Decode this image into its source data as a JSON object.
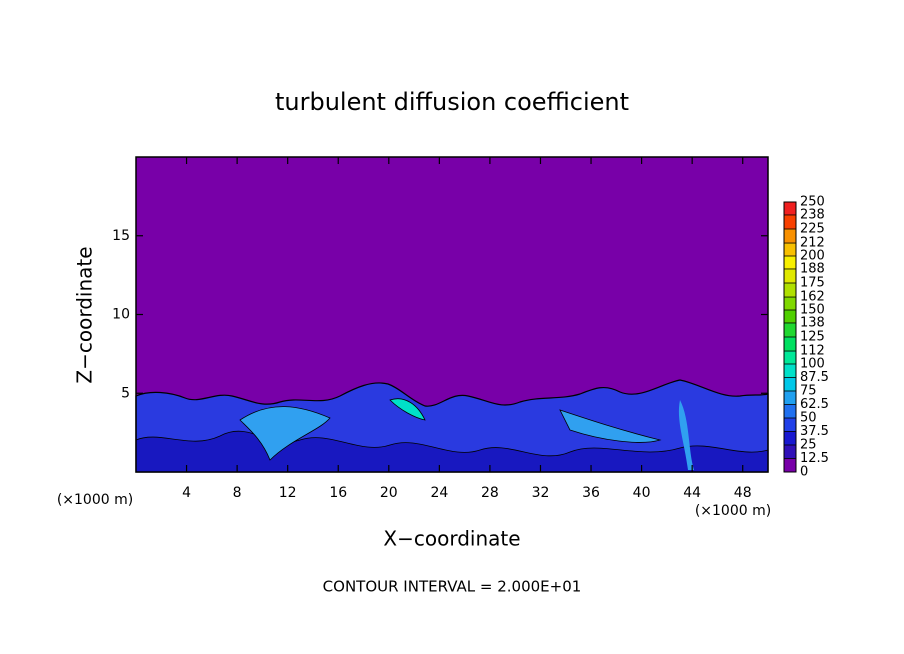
{
  "chart_data": {
    "type": "contour",
    "title": "turbulent diffusion coefficient",
    "xlabel": "X−coordinate",
    "ylabel": "Z−coordinate",
    "x_unit_left": "(×1000 m)",
    "x_unit_right": "(×1000 m)",
    "footer": "CONTOUR INTERVAL = 2.000E+01",
    "xlim": [
      0,
      50
    ],
    "xticks": [
      4,
      8,
      12,
      16,
      20,
      24,
      28,
      32,
      36,
      40,
      44,
      48
    ],
    "ylim": [
      0,
      20
    ],
    "yticks": [
      5,
      10,
      15
    ],
    "colorbar": {
      "clim": [
        0,
        250
      ],
      "ticks": [
        0,
        12.5,
        25,
        37.5,
        50,
        62.5,
        75,
        87.5,
        100,
        112,
        125,
        138,
        150,
        162,
        175,
        188,
        200,
        212,
        225,
        238,
        250
      ],
      "colors": [
        "#7800a8",
        "#3010b8",
        "#1818d0",
        "#2040e8",
        "#2070f0",
        "#20a0f0",
        "#00c8e8",
        "#00e0c8",
        "#00e898",
        "#00e060",
        "#20d830",
        "#50d000",
        "#80d800",
        "#b0e000",
        "#e0e800",
        "#f8f000",
        "#f8c000",
        "#f89000",
        "#f84000",
        "#f02020"
      ]
    }
  }
}
